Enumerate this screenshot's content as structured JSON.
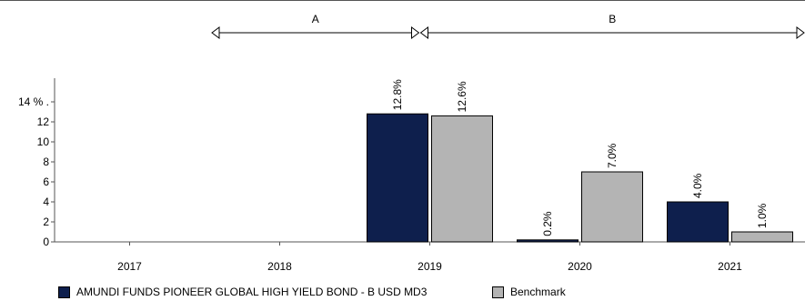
{
  "chart_data": {
    "type": "bar",
    "categories": [
      "2017",
      "2018",
      "2019",
      "2020",
      "2021"
    ],
    "series": [
      {
        "name": "AMUNDI FUNDS PIONEER GLOBAL HIGH YIELD BOND - B USD MD3",
        "values": [
          null,
          null,
          12.8,
          0.2,
          4.0
        ],
        "labels": [
          "",
          "",
          "12.8%",
          "0.2%",
          "4.0%"
        ]
      },
      {
        "name": "Benchmark",
        "values": [
          null,
          null,
          12.6,
          7.0,
          1.0
        ],
        "labels": [
          "",
          "",
          "12.6%",
          "7.0%",
          "1.0%"
        ]
      }
    ],
    "y_ticks": [
      "0",
      "2",
      "4",
      "6",
      "8",
      "10",
      "12",
      "14 % ."
    ],
    "ylim": [
      0,
      14
    ],
    "periods": [
      {
        "label": "A",
        "from": "2018",
        "to": "2019"
      },
      {
        "label": "B",
        "from": "2019",
        "to": "2021"
      }
    ],
    "colors": {
      "series1": "#0e1f4d",
      "series2": "#b4b4b4"
    },
    "grid": false,
    "legend_position": "bottom-left"
  }
}
